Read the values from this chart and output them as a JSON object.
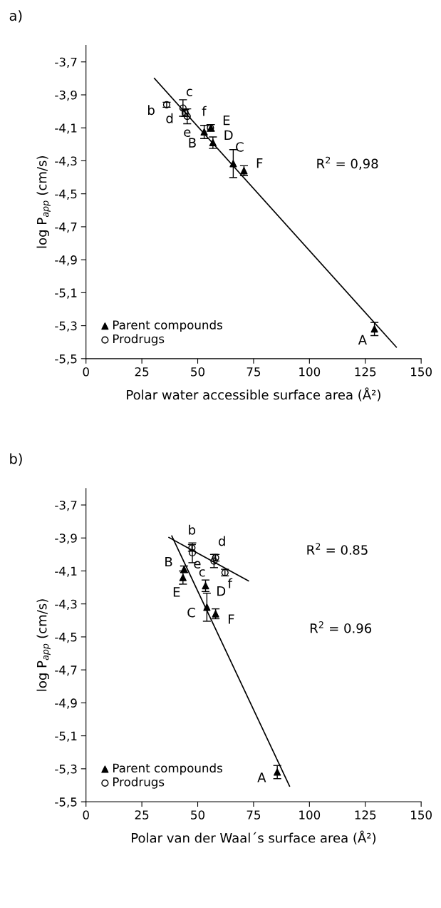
{
  "chart_data": [
    {
      "type": "scatter",
      "title": "a)",
      "xlabel": "Polar water accessible surface area (Å²)",
      "ylabel": "log P$_{app}$ (cm/s)",
      "xlim": [
        0,
        150
      ],
      "xticks": [
        0,
        25,
        50,
        75,
        100,
        125,
        150
      ],
      "ylim": [
        -5.5,
        -3.6
      ],
      "yticks": [
        {
          "value": -5.5,
          "label": "-5,5"
        },
        {
          "value": -5.3,
          "label": "-5,3"
        },
        {
          "value": -5.1,
          "label": "-5,1"
        },
        {
          "value": -4.9,
          "label": "-4,9"
        },
        {
          "value": -4.7,
          "label": "-4,7"
        },
        {
          "value": -4.5,
          "label": "-4,5"
        },
        {
          "value": -4.3,
          "label": "-4,3"
        },
        {
          "value": -4.1,
          "label": "-4,1"
        },
        {
          "value": -3.9,
          "label": "-3,9"
        },
        {
          "value": -3.7,
          "label": "-3,7"
        }
      ],
      "grid": false,
      "legend": "bottom left",
      "series": [
        {
          "name": "Parent compounds",
          "color": "#000000",
          "marker": "triangle",
          "x": [
            129.1,
            52.9,
            65.9,
            56.8,
            55.9,
            70.7
          ],
          "values": [
            -5.32,
            -4.125,
            -4.317,
            -4.19,
            -4.1,
            -4.36
          ],
          "errors": [
            0.04,
            0.04,
            0.085,
            0.035,
            0.02,
            0.03
          ]
        },
        {
          "name": "Prodrugs",
          "color": "#000000",
          "marker": "circle",
          "x": [
            36.1,
            43.4,
            44.4,
            45.3,
            55.7
          ],
          "values": [
            -3.96,
            -3.98,
            -4.01,
            -4.03,
            -4.1
          ],
          "errors": [
            0.015,
            0.05,
            0.02,
            0.045,
            0.02
          ]
        },
        {
          "type": "line",
          "color": "#000000",
          "x": [
            30.6,
            138.9
          ],
          "values": [
            -3.8,
            -5.43
          ]
        }
      ],
      "annotations": [
        {
          "text": "A",
          "x": 129.1,
          "y": -5.32
        },
        {
          "text": "B",
          "x": 52.9,
          "y": -4.125
        },
        {
          "text": "C",
          "x": 65.9,
          "y": -4.317
        },
        {
          "text": "D",
          "x": 56.8,
          "y": -4.19
        },
        {
          "text": "E",
          "x": 55.9,
          "y": -4.1
        },
        {
          "text": "F",
          "x": 70.7,
          "y": -4.36
        },
        {
          "text": "b",
          "x": 36.1,
          "y": -3.96
        },
        {
          "text": "c",
          "x": 43.4,
          "y": -3.98
        },
        {
          "text": "d",
          "x": 44.4,
          "y": -4.01
        },
        {
          "text": "e",
          "x": 45.3,
          "y": -4.03
        },
        {
          "text": "f",
          "x": 55.7,
          "y": -4.1
        },
        "R$^{2}$ = 0,98"
      ]
    },
    {
      "type": "scatter",
      "title": "b)",
      "xlabel": "Polar van der Waal´s surface area (Å²)",
      "ylabel": "log P$_{app}$ (cm/s)",
      "xlim": [
        0,
        150
      ],
      "xticks": [
        0,
        25,
        50,
        75,
        100,
        125,
        150
      ],
      "ylim": [
        -5.5,
        -3.6
      ],
      "yticks": [
        {
          "value": -5.5,
          "label": "-5,5"
        },
        {
          "value": -5.3,
          "label": "-5,3"
        },
        {
          "value": -5.1,
          "label": "-5,1"
        },
        {
          "value": -4.9,
          "label": "-4,9"
        },
        {
          "value": -4.7,
          "label": "-4,7"
        },
        {
          "value": -4.5,
          "label": "-4,5"
        },
        {
          "value": -4.3,
          "label": "-4,3"
        },
        {
          "value": -4.1,
          "label": "-4,1"
        },
        {
          "value": -3.9,
          "label": "-3,9"
        },
        {
          "value": -3.7,
          "label": "-3,7"
        }
      ],
      "grid": false,
      "legend": "bottom left",
      "series": [
        {
          "name": "Parent compounds",
          "color": "#000000",
          "marker": "triangle",
          "x": [
            85.6,
            43.9,
            54.1,
            53.5,
            43.4,
            58.0
          ],
          "values": [
            -5.32,
            -4.09,
            -4.32,
            -4.19,
            -4.14,
            -4.36
          ],
          "errors": [
            0.04,
            0.02,
            0.085,
            0.035,
            0.04,
            0.03
          ]
        },
        {
          "name": "Prodrugs",
          "color": "#000000",
          "marker": "circle",
          "x": [
            47.4,
            57.3,
            58.0,
            47.6,
            62.2
          ],
          "values": [
            -3.96,
            -4.04,
            -4.02,
            -3.99,
            -4.11
          ],
          "errors": [
            0.02,
            0.04,
            0.02,
            0.06,
            0.02
          ]
        },
        {
          "type": "line",
          "color": "#000000",
          "x": [
            37.1,
            72.7
          ],
          "values": [
            -3.897,
            -4.16
          ]
        },
        {
          "type": "line",
          "color": "#000000",
          "x": [
            38.4,
            91.1
          ],
          "values": [
            -3.888,
            -5.405
          ]
        }
      ],
      "annotations": [
        {
          "text": "A",
          "x": 85.6,
          "y": -5.32
        },
        {
          "text": "B",
          "x": 43.9,
          "y": -4.09
        },
        {
          "text": "C",
          "x": 54.1,
          "y": -4.32
        },
        {
          "text": "D",
          "x": 53.5,
          "y": -4.19
        },
        {
          "text": "E",
          "x": 43.4,
          "y": -4.14
        },
        {
          "text": "F",
          "x": 58.0,
          "y": -4.36
        },
        {
          "text": "b",
          "x": 47.4,
          "y": -3.96
        },
        {
          "text": "c",
          "x": 57.3,
          "y": -4.04
        },
        {
          "text": "d",
          "x": 58.0,
          "y": -4.02
        },
        {
          "text": "e",
          "x": 47.6,
          "y": -3.99
        },
        {
          "text": "f",
          "x": 62.2,
          "y": -4.11
        },
        "R$^{2}$ = 0.85",
        "R$^{2}$ = 0.96"
      ]
    }
  ]
}
